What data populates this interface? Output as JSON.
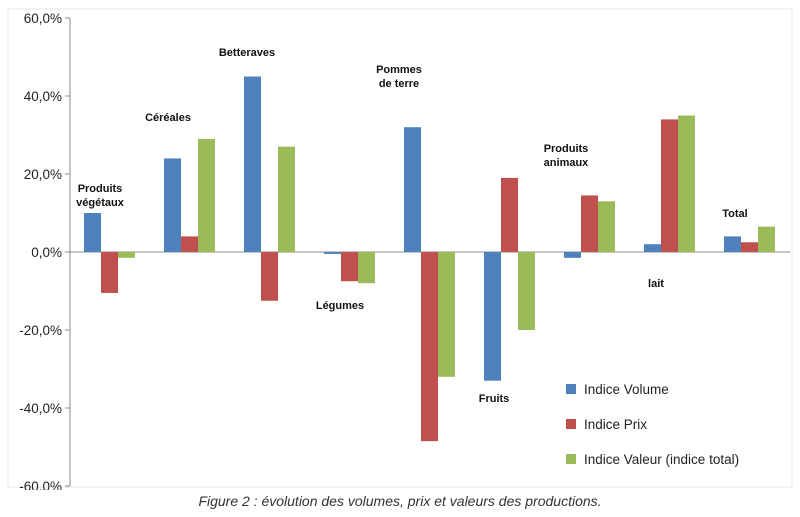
{
  "caption": "Figure 2 : évolution des volumes, prix et valeurs des productions.",
  "chart_data": {
    "type": "bar",
    "title": "",
    "xlabel": "",
    "ylabel": "",
    "ylim": [
      -60,
      60
    ],
    "y_ticks": [
      60,
      40,
      20,
      0,
      -20,
      -40,
      -60
    ],
    "y_tick_labels": [
      "60,0%",
      "40,0%",
      "20,0%",
      "0,0%",
      "-20,0%",
      "-40,0%",
      "-60,0%"
    ],
    "grid": false,
    "legend_position": "bottom-right",
    "categories": [
      "Produits végétaux",
      "Céréales",
      "Betteraves",
      "Légumes",
      "Pommes de terre",
      "Fruits",
      "Produits animaux",
      "lait",
      "Total"
    ],
    "category_label_lines": [
      [
        "Produits",
        "végétaux"
      ],
      [
        "Céréales"
      ],
      [
        "Betteraves"
      ],
      [
        "Légumes"
      ],
      [
        "Pommes",
        "de terre"
      ],
      [
        "Fruits"
      ],
      [
        "Produits",
        "animaux"
      ],
      [
        "lait"
      ],
      [
        "Total"
      ]
    ],
    "series": [
      {
        "name": "Indice Volume",
        "color": "#4f81bd",
        "values": [
          10,
          24,
          45,
          -0.5,
          32,
          -33,
          -1.5,
          2,
          4
        ]
      },
      {
        "name": "Indice Prix",
        "color": "#c0504d",
        "values": [
          -10.5,
          4,
          -12.5,
          -7.5,
          -48.5,
          19,
          14.5,
          34,
          2.5
        ]
      },
      {
        "name": "Indice Valeur (indice total)",
        "color": "#9bbb59",
        "values": [
          -1.5,
          29,
          27,
          -8,
          -32,
          -20,
          13,
          35,
          6.5
        ]
      }
    ]
  }
}
